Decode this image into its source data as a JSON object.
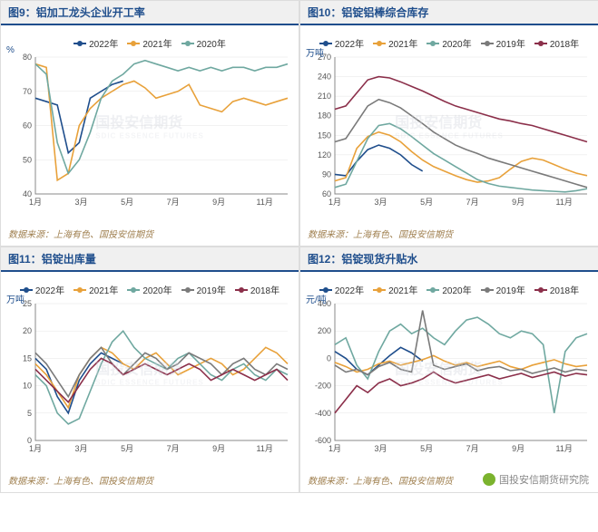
{
  "colors": {
    "y2022": "#1f4e8c",
    "y2021": "#e8a13a",
    "y2020": "#6fa8a0",
    "y2019": "#7a7a7a",
    "y2018": "#8b2f4a",
    "axis": "#888888",
    "grid": "#e5e5e5",
    "title": "#1f4e8c",
    "source": "#a08050"
  },
  "months": [
    "1月",
    "3月",
    "5月",
    "7月",
    "9月",
    "11月"
  ],
  "source_text": "数据来源：上海有色、国投安信期货",
  "watermark": "国投安信期货",
  "watermark_sub": "SDIC ESSENCE FUTURES",
  "footer_watermark": "国投安信期货研究院",
  "charts": {
    "c9": {
      "title_num": "图9：",
      "title_txt": "铝加工龙头企业开工率",
      "ylabel": "%",
      "ylim": [
        40,
        80
      ],
      "ytick_step": 10,
      "series": [
        "y2022",
        "y2021",
        "y2020"
      ],
      "data": {
        "y2022": [
          68,
          67,
          66,
          52,
          55,
          68,
          70,
          72,
          73
        ],
        "y2021": [
          78,
          77,
          44,
          46,
          60,
          65,
          68,
          70,
          72,
          73,
          71,
          68,
          69,
          70,
          72,
          66,
          65,
          64,
          67,
          68,
          67,
          66,
          67,
          68
        ],
        "y2020": [
          78,
          75,
          55,
          46,
          50,
          58,
          68,
          73,
          75,
          78,
          79,
          78,
          77,
          76,
          77,
          76,
          77,
          76,
          77,
          77,
          76,
          77,
          77,
          78
        ]
      }
    },
    "c10": {
      "title_num": "图10：",
      "title_txt": "铝锭铝棒综合库存",
      "ylabel": "万吨",
      "ylim": [
        60,
        270
      ],
      "ytick_step": 30,
      "series": [
        "y2022",
        "y2021",
        "y2020",
        "y2019",
        "y2018"
      ],
      "data": {
        "y2022": [
          90,
          88,
          110,
          128,
          135,
          130,
          120,
          105,
          95
        ],
        "y2021": [
          80,
          85,
          130,
          148,
          155,
          150,
          140,
          125,
          112,
          102,
          95,
          88,
          82,
          78,
          80,
          85,
          98,
          110,
          115,
          112,
          105,
          98,
          92,
          88
        ],
        "y2020": [
          70,
          75,
          110,
          145,
          165,
          168,
          160,
          148,
          135,
          122,
          112,
          102,
          92,
          82,
          76,
          72,
          70,
          68,
          66,
          65,
          64,
          63,
          65,
          68
        ],
        "y2019": [
          140,
          145,
          170,
          195,
          205,
          200,
          192,
          180,
          168,
          155,
          145,
          135,
          128,
          122,
          115,
          110,
          105,
          100,
          95,
          90,
          85,
          80,
          75,
          70
        ],
        "y2018": [
          190,
          195,
          215,
          235,
          240,
          238,
          232,
          225,
          218,
          210,
          202,
          195,
          190,
          185,
          180,
          175,
          172,
          168,
          165,
          160,
          155,
          150,
          145,
          140
        ]
      }
    },
    "c11": {
      "title_num": "图11：",
      "title_txt": "铝锭出库量",
      "ylabel": "万吨",
      "ylim": [
        0,
        25
      ],
      "ytick_step": 5,
      "series": [
        "y2022",
        "y2021",
        "y2020",
        "y2019",
        "y2018"
      ],
      "data": {
        "y2022": [
          15,
          13,
          8,
          5,
          11,
          14,
          16,
          15,
          14
        ],
        "y2021": [
          14,
          12,
          9,
          6,
          12,
          15,
          17,
          16,
          14,
          13,
          15,
          16,
          14,
          12,
          13,
          14,
          15,
          14,
          12,
          13,
          15,
          17,
          16,
          14
        ],
        "y2020": [
          12,
          10,
          5,
          3,
          4,
          9,
          14,
          18,
          20,
          17,
          15,
          14,
          13,
          15,
          16,
          14,
          12,
          11,
          13,
          14,
          12,
          11,
          13,
          12
        ],
        "y2019": [
          16,
          14,
          11,
          8,
          12,
          15,
          17,
          14,
          12,
          14,
          16,
          15,
          13,
          14,
          16,
          15,
          14,
          12,
          14,
          15,
          13,
          12,
          14,
          13
        ],
        "y2018": [
          13,
          11,
          9,
          7,
          10,
          13,
          15,
          14,
          12,
          13,
          14,
          13,
          12,
          13,
          14,
          13,
          11,
          12,
          13,
          12,
          11,
          12,
          13,
          11
        ]
      }
    },
    "c12": {
      "title_num": "图12：",
      "title_txt": "铝锭现货升贴水",
      "ylabel": "元/吨",
      "ylim": [
        -600,
        400
      ],
      "ytick_step": 200,
      "series": [
        "y2022",
        "y2021",
        "y2020",
        "y2019",
        "y2018"
      ],
      "data": {
        "y2022": [
          50,
          0,
          -80,
          -120,
          -50,
          20,
          80,
          40,
          -20
        ],
        "y2021": [
          -30,
          -60,
          -100,
          -80,
          -40,
          -20,
          -50,
          -30,
          -10,
          20,
          -20,
          -50,
          -30,
          -60,
          -40,
          -20,
          -60,
          -80,
          -50,
          -30,
          -10,
          -40,
          -60,
          -50
        ],
        "y2020": [
          100,
          150,
          -50,
          -150,
          50,
          200,
          250,
          180,
          220,
          150,
          100,
          200,
          280,
          300,
          250,
          180,
          150,
          200,
          180,
          100,
          -400,
          50,
          150,
          180
        ],
        "y2019": [
          -50,
          -100,
          -80,
          -120,
          -60,
          -30,
          -80,
          -100,
          350,
          -50,
          -80,
          -60,
          -40,
          -90,
          -70,
          -60,
          -90,
          -80,
          -110,
          -90,
          -70,
          -100,
          -80,
          -90
        ],
        "y2018": [
          -400,
          -300,
          -200,
          -250,
          -180,
          -150,
          -200,
          -180,
          -150,
          -100,
          -150,
          -180,
          -160,
          -140,
          -120,
          -150,
          -130,
          -110,
          -140,
          -120,
          -100,
          -130,
          -110,
          -120
        ]
      }
    }
  },
  "legend_labels": {
    "y2022": "2022年",
    "y2021": "2021年",
    "y2020": "2020年",
    "y2019": "2019年",
    "y2018": "2018年"
  }
}
